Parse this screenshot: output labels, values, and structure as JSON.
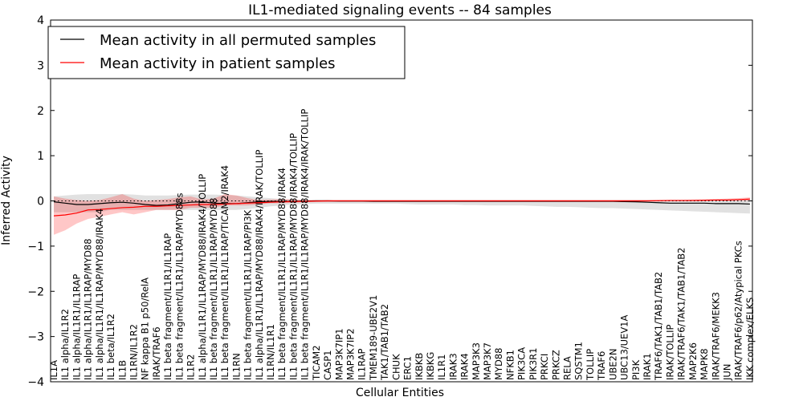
{
  "chart_data": {
    "type": "line",
    "title": "IL1-mediated signaling events -- 84 samples",
    "xlabel": "Cellular Entities",
    "ylabel": "Inferred Activity",
    "ylim": [
      -4,
      4
    ],
    "yticks": [
      "−4",
      "−3",
      "−2",
      "−1",
      "0",
      "1",
      "2",
      "3",
      "4"
    ],
    "ytick_values": [
      -4,
      -3,
      -2,
      -1,
      0,
      1,
      2,
      3,
      4
    ],
    "legend": {
      "placement": "top-left",
      "entries": [
        {
          "label": "Mean activity in all permuted samples",
          "color": "#000000"
        },
        {
          "label": "Mean activity in patient samples",
          "color": "#ff0000"
        }
      ]
    },
    "categories": [
      "IL1A",
      "IL1 alpha/IL1R2",
      "IL1 alpha/IL1R1/IL1RAP",
      "IL1 alpha/IL1R1/IL1RAP/MYD88",
      "IL1 alpha/IL1R1/IL1RAP/MYD88/IRAK4",
      "IL1 beta/IL1R2",
      "IL1B",
      "IL1RN/IL1R2",
      "NF kappa B1 p50/RelA",
      "IRAK/TRAF6",
      "IL1 beta fragment/IL1R1/IL1RAP",
      "IL1 beta fragment/IL1R1/IL1RAP/MYD88s",
      "IL1R2",
      "IL1 alpha/IL1R1/IL1RAP/MYD88/IRAK4/TOLLIP",
      "IL1 beta fragment/IL1R1/IL1RAP/MYD88",
      "IL1 beta fragment/IL1R1/IL1RAP/TICAM2/IRAK4",
      "IL1RN",
      "IL1 beta fragment/IL1R1/IL1RAP/PI3K",
      "IL1 alpha/IL1R1/IL1RAP/MYD88/IRAK4/IRAK/TOLLIP",
      "IL1RN/IL1R1",
      "IL1 beta fragment/IL1R1/IL1RAP/MYD88/IRAK4",
      "IL1 beta fragment/IL1R1/IL1RAP/MYD88/IRAK4/TOLLIP",
      "IL1 beta fragment/IL1R1/IL1RAP/MYD88/IRAK4/IRAK/TOLLIP",
      "TICAM2",
      "CASP1",
      "MAP3K7IP1",
      "MAP3K7IP2",
      "IL1RAP",
      "TMEM189-UBE2V1",
      "TAK1/TAB1/TAB2",
      "CHUK",
      "ERC1",
      "IKBKB",
      "IKBKG",
      "IL1R1",
      "IRAK3",
      "IRAK4",
      "MAP3K3",
      "MAP3K7",
      "MYD88",
      "NFKB1",
      "PIK3CA",
      "PIK3R1",
      "PRKCI",
      "PRKCZ",
      "RELA",
      "SQSTM1",
      "TOLLIP",
      "TRAF6",
      "UBE2N",
      "UBC13/UEV1A",
      "PI3K",
      "IRAK1",
      "TRAF6/TAK1/TAB1/TAB2",
      "IRAK/TOLLIP",
      "IRAK/TRAF6/TAK1/TAB1/TAB2",
      "MAP2K6",
      "MAPK8",
      "IRAK/TRAF6/MEKK3",
      "JUN",
      "IRAK/TRAF6/p62/Atypical PKCs",
      "IKK complex/ELKS"
    ],
    "series": [
      {
        "name": "Mean activity in patient samples",
        "color": "#ff0000",
        "values": [
          -0.33,
          -0.31,
          -0.27,
          -0.2,
          -0.19,
          -0.17,
          -0.15,
          -0.14,
          -0.12,
          -0.12,
          -0.11,
          -0.1,
          -0.09,
          -0.08,
          -0.08,
          -0.07,
          -0.06,
          -0.05,
          -0.04,
          -0.03,
          -0.02,
          -0.015,
          -0.01,
          -0.005,
          0.0,
          0.0,
          0.0,
          0.0,
          0.0,
          0.0,
          0.0,
          0.0,
          0.0,
          0.0,
          0.0,
          0.0,
          0.0,
          0.0,
          0.0,
          0.0,
          0.0,
          0.0,
          0.0,
          0.0,
          0.0,
          0.0,
          0.0,
          0.0,
          0.0,
          0.0,
          0.0,
          0.0,
          0.0,
          0.005,
          0.01,
          0.01,
          0.01,
          0.015,
          0.02,
          0.02,
          0.03,
          0.04
        ],
        "band_low": [
          -0.75,
          -0.65,
          -0.5,
          -0.4,
          -0.35,
          -0.3,
          -0.25,
          -0.3,
          -0.25,
          -0.2,
          -0.2,
          -0.2,
          -0.15,
          -0.15,
          -0.15,
          -0.1,
          -0.1,
          -0.1,
          -0.08,
          -0.05,
          -0.05,
          -0.04,
          -0.03,
          -0.02,
          -0.02,
          -0.01,
          -0.01,
          -0.01,
          -0.01,
          -0.01,
          -0.01,
          -0.01,
          -0.01,
          -0.01,
          -0.01,
          -0.01,
          -0.01,
          -0.01,
          -0.01,
          -0.01,
          -0.01,
          -0.01,
          -0.01,
          -0.01,
          -0.01,
          -0.01,
          -0.01,
          -0.01,
          -0.01,
          -0.01,
          -0.01,
          -0.01,
          -0.01,
          -0.005,
          -0.005,
          -0.005,
          -0.005,
          -0.005,
          0.0,
          0.0,
          0.0,
          0.0
        ],
        "band_high": [
          0.1,
          0.05,
          0.02,
          0.0,
          0.02,
          0.08,
          0.15,
          0.05,
          0.0,
          0.02,
          0.04,
          0.08,
          0.1,
          0.03,
          0.05,
          0.15,
          0.12,
          0.06,
          0.02,
          0.03,
          0.04,
          0.03,
          0.02,
          0.02,
          0.02,
          0.02,
          0.02,
          0.02,
          0.02,
          0.02,
          0.02,
          0.02,
          0.02,
          0.02,
          0.02,
          0.02,
          0.02,
          0.02,
          0.02,
          0.02,
          0.02,
          0.02,
          0.02,
          0.02,
          0.02,
          0.02,
          0.02,
          0.02,
          0.02,
          0.02,
          0.02,
          0.02,
          0.02,
          0.02,
          0.02,
          0.02,
          0.03,
          0.03,
          0.04,
          0.05,
          0.06,
          0.08
        ]
      },
      {
        "name": "Mean activity in all permuted samples",
        "color": "#000000",
        "values": [
          -0.02,
          -0.05,
          -0.08,
          -0.08,
          -0.06,
          -0.04,
          -0.03,
          -0.05,
          -0.08,
          -0.1,
          -0.09,
          -0.06,
          -0.03,
          -0.02,
          -0.05,
          -0.06,
          -0.06,
          -0.04,
          -0.02,
          -0.01,
          -0.01,
          -0.01,
          -0.005,
          0.0,
          0.0,
          -0.005,
          -0.005,
          -0.005,
          -0.01,
          -0.01,
          -0.01,
          -0.01,
          -0.01,
          -0.01,
          -0.01,
          -0.01,
          -0.01,
          -0.01,
          -0.01,
          -0.01,
          -0.01,
          -0.01,
          -0.01,
          -0.01,
          -0.01,
          -0.01,
          -0.01,
          -0.01,
          -0.01,
          -0.01,
          -0.015,
          -0.02,
          -0.03,
          -0.04,
          -0.05,
          -0.05,
          -0.05,
          -0.05,
          -0.06,
          -0.06,
          -0.06,
          -0.07
        ],
        "band_low": [
          -0.25,
          -0.25,
          -0.25,
          -0.25,
          -0.25,
          -0.2,
          -0.2,
          -0.2,
          -0.2,
          -0.2,
          -0.2,
          -0.2,
          -0.2,
          -0.2,
          -0.2,
          -0.2,
          -0.2,
          -0.18,
          -0.15,
          -0.12,
          -0.1,
          -0.08,
          -0.07,
          -0.06,
          -0.06,
          -0.06,
          -0.06,
          -0.06,
          -0.06,
          -0.06,
          -0.06,
          -0.07,
          -0.08,
          -0.08,
          -0.08,
          -0.08,
          -0.09,
          -0.09,
          -0.1,
          -0.1,
          -0.1,
          -0.1,
          -0.11,
          -0.12,
          -0.13,
          -0.13,
          -0.14,
          -0.15,
          -0.16,
          -0.16,
          -0.17,
          -0.18,
          -0.19,
          -0.2,
          -0.21,
          -0.22,
          -0.23,
          -0.24,
          -0.25,
          -0.26,
          -0.27,
          -0.28
        ],
        "band_high": [
          0.1,
          0.12,
          0.14,
          0.15,
          0.15,
          0.15,
          0.15,
          0.14,
          0.12,
          0.12,
          0.12,
          0.13,
          0.14,
          0.14,
          0.14,
          0.13,
          0.12,
          0.1,
          0.08,
          0.06,
          0.04,
          0.03,
          0.02,
          0.02,
          0.02,
          0.02,
          0.02,
          0.02,
          0.02,
          0.02,
          0.02,
          0.02,
          0.02,
          0.02,
          0.02,
          0.02,
          0.02,
          0.02,
          0.02,
          0.02,
          0.02,
          0.02,
          0.02,
          0.02,
          0.02,
          0.02,
          0.02,
          0.02,
          0.02,
          0.02,
          0.02,
          0.02,
          0.02,
          0.02,
          0.02,
          0.02,
          0.02,
          0.02,
          0.02,
          0.02,
          0.02,
          0.02
        ]
      }
    ],
    "baseline": {
      "value": 0,
      "style": "dotted",
      "color": "#000000"
    }
  }
}
